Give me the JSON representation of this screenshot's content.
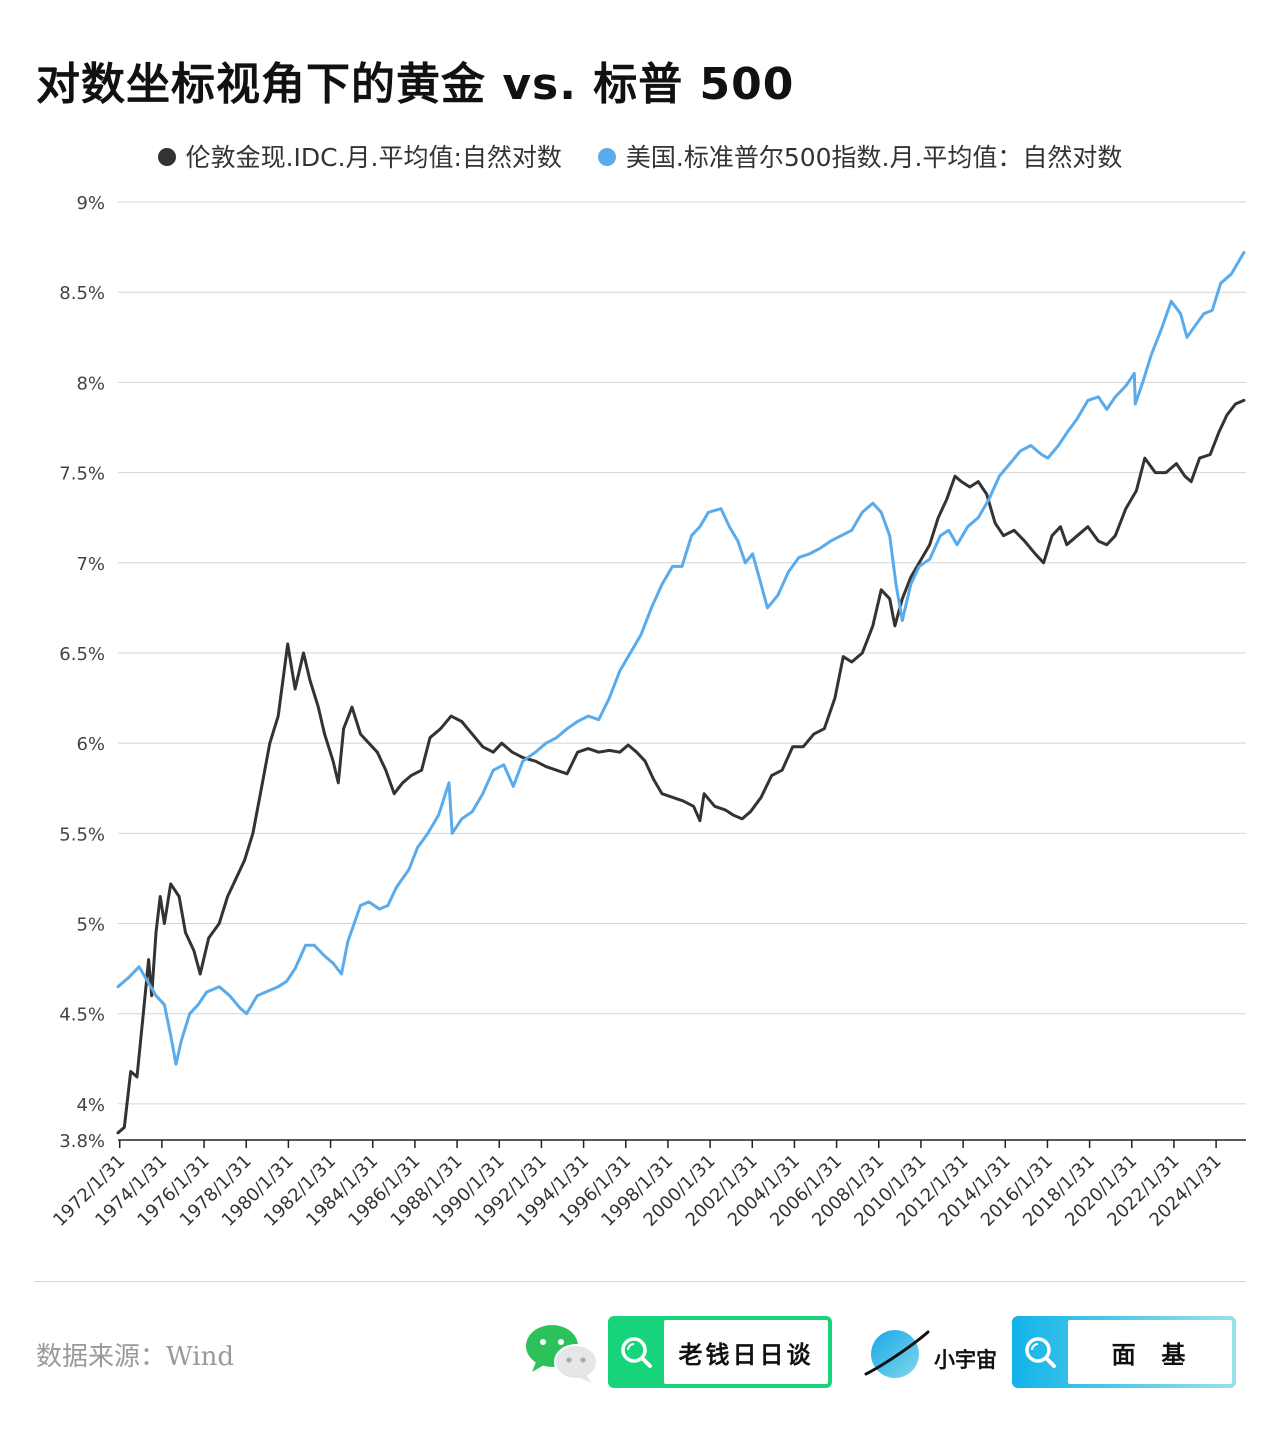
{
  "header": {
    "title": "对数坐标视角下的黄金 vs. 标普 500"
  },
  "footer": {
    "source": "数据来源：Wind",
    "wechat_account": "老钱日日谈",
    "xiaoyuzhou_brand": "小宇宙",
    "xiaoyuzhou_account": "面  基"
  },
  "colors": {
    "gold": "#333333",
    "sp500": "#5aabec",
    "grid": "#d4d4d4",
    "green": "#17d47a",
    "blue": "#12b3e8"
  },
  "chart_data": {
    "type": "line",
    "title": "对数坐标视角下的黄金 vs. 标普 500",
    "xlabel": "",
    "ylabel": "",
    "ylim": [
      3.8,
      9
    ],
    "xlim": [
      1972.0,
      2025.5
    ],
    "y_ticks": [
      "9%",
      "8.5%",
      "8%",
      "7.5%",
      "7%",
      "6.5%",
      "6%",
      "5.5%",
      "5%",
      "4.5%",
      "4%",
      "3.8%"
    ],
    "y_tick_values": [
      9,
      8.5,
      8,
      7.5,
      7,
      6.5,
      6,
      5.5,
      5,
      4.5,
      4,
      3.8
    ],
    "x_ticks": [
      "1972/1/31",
      "1974/1/31",
      "1976/1/31",
      "1978/1/31",
      "1980/1/31",
      "1982/1/31",
      "1984/1/31",
      "1986/1/31",
      "1988/1/31",
      "1990/1/31",
      "1992/1/31",
      "1994/1/31",
      "1996/1/31",
      "1998/1/31",
      "2000/1/31",
      "2002/1/31",
      "2004/1/31",
      "2006/1/31",
      "2008/1/31",
      "2010/1/31",
      "2012/1/31",
      "2014/1/31",
      "2016/1/31",
      "2018/1/31",
      "2020/1/31",
      "2022/1/31",
      "2024/1/31"
    ],
    "grid": true,
    "legend_position": "top-center",
    "series": [
      {
        "name": "伦敦金现.IDC.月.平均值:自然对数",
        "color": "#333333",
        "points": [
          [
            1972.0,
            3.84
          ],
          [
            1972.3,
            3.87
          ],
          [
            1972.6,
            4.18
          ],
          [
            1972.9,
            4.15
          ],
          [
            1973.2,
            4.5
          ],
          [
            1973.45,
            4.8
          ],
          [
            1973.6,
            4.6
          ],
          [
            1973.8,
            4.95
          ],
          [
            1974.0,
            5.15
          ],
          [
            1974.2,
            5.0
          ],
          [
            1974.5,
            5.22
          ],
          [
            1974.9,
            5.15
          ],
          [
            1975.2,
            4.95
          ],
          [
            1975.6,
            4.85
          ],
          [
            1975.9,
            4.72
          ],
          [
            1976.3,
            4.92
          ],
          [
            1976.8,
            5.0
          ],
          [
            1977.2,
            5.15
          ],
          [
            1977.6,
            5.25
          ],
          [
            1978.0,
            5.35
          ],
          [
            1978.4,
            5.5
          ],
          [
            1978.8,
            5.75
          ],
          [
            1979.2,
            6.0
          ],
          [
            1979.6,
            6.15
          ],
          [
            1980.05,
            6.55
          ],
          [
            1980.4,
            6.3
          ],
          [
            1980.8,
            6.5
          ],
          [
            1981.1,
            6.35
          ],
          [
            1981.5,
            6.2
          ],
          [
            1981.8,
            6.05
          ],
          [
            1982.2,
            5.9
          ],
          [
            1982.45,
            5.78
          ],
          [
            1982.7,
            6.08
          ],
          [
            1983.1,
            6.2
          ],
          [
            1983.5,
            6.05
          ],
          [
            1983.9,
            6.0
          ],
          [
            1984.3,
            5.95
          ],
          [
            1984.7,
            5.85
          ],
          [
            1985.1,
            5.72
          ],
          [
            1985.5,
            5.78
          ],
          [
            1985.9,
            5.82
          ],
          [
            1986.4,
            5.85
          ],
          [
            1986.8,
            6.03
          ],
          [
            1987.3,
            6.08
          ],
          [
            1987.8,
            6.15
          ],
          [
            1988.3,
            6.12
          ],
          [
            1988.8,
            6.05
          ],
          [
            1989.3,
            5.98
          ],
          [
            1989.8,
            5.95
          ],
          [
            1990.2,
            6.0
          ],
          [
            1990.7,
            5.95
          ],
          [
            1991.2,
            5.92
          ],
          [
            1991.8,
            5.9
          ],
          [
            1992.3,
            5.87
          ],
          [
            1992.8,
            5.85
          ],
          [
            1993.3,
            5.83
          ],
          [
            1993.8,
            5.95
          ],
          [
            1994.3,
            5.97
          ],
          [
            1994.8,
            5.95
          ],
          [
            1995.3,
            5.96
          ],
          [
            1995.8,
            5.95
          ],
          [
            1996.2,
            5.99
          ],
          [
            1996.6,
            5.95
          ],
          [
            1997.0,
            5.9
          ],
          [
            1997.4,
            5.8
          ],
          [
            1997.8,
            5.72
          ],
          [
            1998.3,
            5.7
          ],
          [
            1998.8,
            5.68
          ],
          [
            1999.3,
            5.65
          ],
          [
            1999.6,
            5.57
          ],
          [
            1999.8,
            5.72
          ],
          [
            2000.3,
            5.65
          ],
          [
            2000.8,
            5.63
          ],
          [
            2001.2,
            5.6
          ],
          [
            2001.6,
            5.58
          ],
          [
            2002.0,
            5.62
          ],
          [
            2002.5,
            5.7
          ],
          [
            2003.0,
            5.82
          ],
          [
            2003.5,
            5.85
          ],
          [
            2004.0,
            5.98
          ],
          [
            2004.5,
            5.98
          ],
          [
            2005.0,
            6.05
          ],
          [
            2005.5,
            6.08
          ],
          [
            2006.0,
            6.25
          ],
          [
            2006.4,
            6.48
          ],
          [
            2006.8,
            6.45
          ],
          [
            2007.3,
            6.5
          ],
          [
            2007.8,
            6.65
          ],
          [
            2008.2,
            6.85
          ],
          [
            2008.6,
            6.8
          ],
          [
            2008.85,
            6.65
          ],
          [
            2009.2,
            6.8
          ],
          [
            2009.6,
            6.92
          ],
          [
            2010.0,
            7.0
          ],
          [
            2010.5,
            7.1
          ],
          [
            2010.9,
            7.25
          ],
          [
            2011.3,
            7.35
          ],
          [
            2011.7,
            7.48
          ],
          [
            2012.0,
            7.45
          ],
          [
            2012.4,
            7.42
          ],
          [
            2012.8,
            7.45
          ],
          [
            2013.2,
            7.38
          ],
          [
            2013.6,
            7.22
          ],
          [
            2014.0,
            7.15
          ],
          [
            2014.5,
            7.18
          ],
          [
            2015.0,
            7.12
          ],
          [
            2015.5,
            7.05
          ],
          [
            2015.9,
            7.0
          ],
          [
            2016.3,
            7.15
          ],
          [
            2016.7,
            7.2
          ],
          [
            2017.0,
            7.1
          ],
          [
            2017.5,
            7.15
          ],
          [
            2018.0,
            7.2
          ],
          [
            2018.5,
            7.12
          ],
          [
            2018.9,
            7.1
          ],
          [
            2019.3,
            7.15
          ],
          [
            2019.8,
            7.3
          ],
          [
            2020.3,
            7.4
          ],
          [
            2020.7,
            7.58
          ],
          [
            2021.2,
            7.5
          ],
          [
            2021.7,
            7.5
          ],
          [
            2022.2,
            7.55
          ],
          [
            2022.6,
            7.48
          ],
          [
            2022.9,
            7.45
          ],
          [
            2023.3,
            7.58
          ],
          [
            2023.8,
            7.6
          ],
          [
            2024.2,
            7.72
          ],
          [
            2024.6,
            7.82
          ],
          [
            2025.0,
            7.88
          ],
          [
            2025.4,
            7.9
          ]
        ]
      },
      {
        "name": "美国.标准普尔500指数.月.平均值：自然对数",
        "color": "#5aabec",
        "points": [
          [
            1972.0,
            4.65
          ],
          [
            1972.5,
            4.7
          ],
          [
            1973.0,
            4.76
          ],
          [
            1973.4,
            4.68
          ],
          [
            1973.8,
            4.6
          ],
          [
            1974.2,
            4.55
          ],
          [
            1974.5,
            4.38
          ],
          [
            1974.75,
            4.22
          ],
          [
            1975.0,
            4.35
          ],
          [
            1975.4,
            4.5
          ],
          [
            1975.8,
            4.55
          ],
          [
            1976.2,
            4.62
          ],
          [
            1976.8,
            4.65
          ],
          [
            1977.3,
            4.6
          ],
          [
            1977.8,
            4.53
          ],
          [
            1978.1,
            4.5
          ],
          [
            1978.6,
            4.6
          ],
          [
            1979.0,
            4.62
          ],
          [
            1979.6,
            4.65
          ],
          [
            1980.0,
            4.68
          ],
          [
            1980.4,
            4.75
          ],
          [
            1980.9,
            4.88
          ],
          [
            1981.3,
            4.88
          ],
          [
            1981.8,
            4.82
          ],
          [
            1982.2,
            4.78
          ],
          [
            1982.6,
            4.72
          ],
          [
            1982.9,
            4.9
          ],
          [
            1983.5,
            5.1
          ],
          [
            1983.9,
            5.12
          ],
          [
            1984.4,
            5.08
          ],
          [
            1984.8,
            5.1
          ],
          [
            1985.2,
            5.2
          ],
          [
            1985.8,
            5.3
          ],
          [
            1986.2,
            5.42
          ],
          [
            1986.7,
            5.5
          ],
          [
            1987.2,
            5.6
          ],
          [
            1987.7,
            5.78
          ],
          [
            1987.85,
            5.5
          ],
          [
            1988.3,
            5.58
          ],
          [
            1988.8,
            5.62
          ],
          [
            1989.3,
            5.72
          ],
          [
            1989.8,
            5.85
          ],
          [
            1990.3,
            5.88
          ],
          [
            1990.75,
            5.76
          ],
          [
            1991.2,
            5.9
          ],
          [
            1991.8,
            5.95
          ],
          [
            1992.3,
            6.0
          ],
          [
            1992.8,
            6.03
          ],
          [
            1993.3,
            6.08
          ],
          [
            1993.8,
            6.12
          ],
          [
            1994.3,
            6.15
          ],
          [
            1994.8,
            6.13
          ],
          [
            1995.3,
            6.25
          ],
          [
            1995.8,
            6.4
          ],
          [
            1996.3,
            6.5
          ],
          [
            1996.8,
            6.6
          ],
          [
            1997.3,
            6.75
          ],
          [
            1997.8,
            6.88
          ],
          [
            1998.3,
            6.98
          ],
          [
            1998.75,
            6.98
          ],
          [
            1999.2,
            7.15
          ],
          [
            1999.6,
            7.2
          ],
          [
            2000.0,
            7.28
          ],
          [
            2000.6,
            7.3
          ],
          [
            2001.0,
            7.2
          ],
          [
            2001.4,
            7.12
          ],
          [
            2001.75,
            7.0
          ],
          [
            2002.1,
            7.05
          ],
          [
            2002.5,
            6.88
          ],
          [
            2002.8,
            6.75
          ],
          [
            2003.3,
            6.82
          ],
          [
            2003.8,
            6.95
          ],
          [
            2004.3,
            7.03
          ],
          [
            2004.8,
            7.05
          ],
          [
            2005.3,
            7.08
          ],
          [
            2005.8,
            7.12
          ],
          [
            2006.3,
            7.15
          ],
          [
            2006.8,
            7.18
          ],
          [
            2007.3,
            7.28
          ],
          [
            2007.8,
            7.33
          ],
          [
            2008.2,
            7.28
          ],
          [
            2008.6,
            7.15
          ],
          [
            2008.9,
            6.88
          ],
          [
            2009.2,
            6.68
          ],
          [
            2009.6,
            6.88
          ],
          [
            2010.0,
            6.98
          ],
          [
            2010.5,
            7.02
          ],
          [
            2011.0,
            7.15
          ],
          [
            2011.4,
            7.18
          ],
          [
            2011.8,
            7.1
          ],
          [
            2012.3,
            7.2
          ],
          [
            2012.8,
            7.25
          ],
          [
            2013.3,
            7.35
          ],
          [
            2013.8,
            7.48
          ],
          [
            2014.3,
            7.55
          ],
          [
            2014.8,
            7.62
          ],
          [
            2015.3,
            7.65
          ],
          [
            2015.8,
            7.6
          ],
          [
            2016.1,
            7.58
          ],
          [
            2016.6,
            7.65
          ],
          [
            2017.0,
            7.72
          ],
          [
            2017.5,
            7.8
          ],
          [
            2018.0,
            7.9
          ],
          [
            2018.5,
            7.92
          ],
          [
            2018.9,
            7.85
          ],
          [
            2019.3,
            7.92
          ],
          [
            2019.8,
            7.98
          ],
          [
            2020.2,
            8.05
          ],
          [
            2020.25,
            7.88
          ],
          [
            2020.6,
            8.0
          ],
          [
            2021.0,
            8.15
          ],
          [
            2021.5,
            8.3
          ],
          [
            2021.95,
            8.45
          ],
          [
            2022.4,
            8.38
          ],
          [
            2022.7,
            8.25
          ],
          [
            2023.0,
            8.3
          ],
          [
            2023.5,
            8.38
          ],
          [
            2023.9,
            8.4
          ],
          [
            2024.3,
            8.55
          ],
          [
            2024.8,
            8.6
          ],
          [
            2025.4,
            8.72
          ]
        ]
      }
    ]
  }
}
